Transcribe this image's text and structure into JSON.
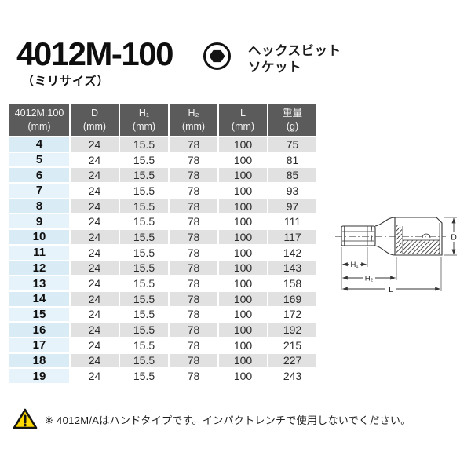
{
  "header": {
    "model": "4012M-100",
    "model_note": "（ミリサイズ）",
    "product_type_line1": "ヘックスビット",
    "product_type_line2": "ソケット"
  },
  "table": {
    "columns": [
      {
        "label": "4012M.100",
        "unit": "(mm)"
      },
      {
        "label": "D",
        "unit": "(mm)"
      },
      {
        "label": "H₁",
        "unit": "(mm)"
      },
      {
        "label": "H₂",
        "unit": "(mm)"
      },
      {
        "label": "L",
        "unit": "(mm)"
      },
      {
        "label": "重量",
        "unit": "(g)"
      }
    ],
    "rows": [
      [
        "4",
        "24",
        "15.5",
        "78",
        "100",
        "75"
      ],
      [
        "5",
        "24",
        "15.5",
        "78",
        "100",
        "81"
      ],
      [
        "6",
        "24",
        "15.5",
        "78",
        "100",
        "85"
      ],
      [
        "7",
        "24",
        "15.5",
        "78",
        "100",
        "93"
      ],
      [
        "8",
        "24",
        "15.5",
        "78",
        "100",
        "97"
      ],
      [
        "9",
        "24",
        "15.5",
        "78",
        "100",
        "111"
      ],
      [
        "10",
        "24",
        "15.5",
        "78",
        "100",
        "117"
      ],
      [
        "11",
        "24",
        "15.5",
        "78",
        "100",
        "142"
      ],
      [
        "12",
        "24",
        "15.5",
        "78",
        "100",
        "143"
      ],
      [
        "13",
        "24",
        "15.5",
        "78",
        "100",
        "158"
      ],
      [
        "14",
        "24",
        "15.5",
        "78",
        "100",
        "169"
      ],
      [
        "15",
        "24",
        "15.5",
        "78",
        "100",
        "172"
      ],
      [
        "16",
        "24",
        "15.5",
        "78",
        "100",
        "192"
      ],
      [
        "17",
        "24",
        "15.5",
        "78",
        "100",
        "215"
      ],
      [
        "18",
        "24",
        "15.5",
        "78",
        "100",
        "227"
      ],
      [
        "19",
        "24",
        "15.5",
        "78",
        "100",
        "243"
      ]
    ]
  },
  "diagram": {
    "labels": {
      "h1": "H₁",
      "h2": "H₂",
      "l": "L",
      "d": "D"
    }
  },
  "footnote": {
    "text": "※ 4012M/Aはハンドタイプです。インパクトレンチで使用しないでください。"
  },
  "colors": {
    "header_bg": "#5b5b5b",
    "header_text": "#f3f3f3",
    "size_col_bg_a": "#d9ecf6",
    "size_col_bg_b": "#e6f3fa",
    "row_bg_gray": "#e1e1e1",
    "row_bg_white": "#ffffff",
    "warning_yellow": "#ffd900"
  }
}
